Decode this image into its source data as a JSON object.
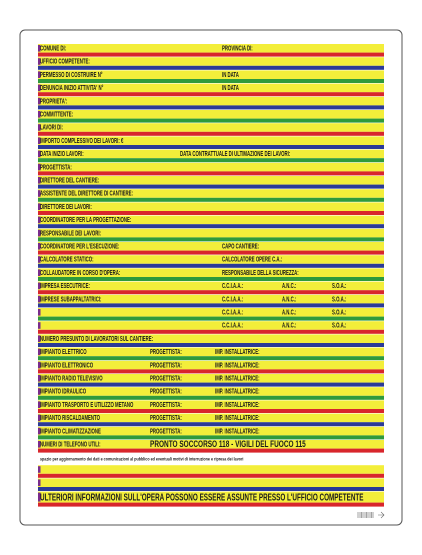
{
  "sign": {
    "rows": [
      [
        "COMUNE DI:",
        "PROVINCIA DI:"
      ],
      [
        "UFFICIO COMPETENTE:"
      ],
      [
        "PERMESSO DI COSTRUIRE N°",
        "IN DATA"
      ],
      [
        "DENUNCIA INIZIO ATTIVITA' N°",
        "IN DATA"
      ],
      [
        "PROPRIETA':"
      ],
      [
        "COMMITTENTE:"
      ],
      [
        "LAVORI DI:"
      ],
      [
        "IMPORTO COMPLESSIVO DEI LAVORI: €"
      ],
      [
        "DATA INIZIO LAVORI:",
        "DATA CONTRATTUALE DI ULTIMAZIONE DEI LAVORI:"
      ],
      [
        "PROGETTISTA:"
      ],
      [
        "DIRETTORE DEL CANTIERE:"
      ],
      [
        "ASSISTENTE DEL DIRETTORE DI CANTIERE:"
      ],
      [
        "DIRETTORE DEI LAVORI:"
      ],
      [
        "COORDINATORE PER LA PROGETTAZIONE:"
      ],
      [
        "RESPONSABILE DEI LAVORI:"
      ],
      [
        "COORDINATORE PER L'ESECUZIONE:",
        "CAPO CANTIERE:"
      ],
      [
        "CALCOLATORE STATICO:",
        "CALCOLATORE OPERE C.A.:"
      ],
      [
        "COLLAUDATORE IN CORSO D'OPERA:",
        "RESPONSABILE DELLA SICUREZZA:"
      ],
      [
        "IMPRESA ESECUTRICE:",
        "C.C.I.A.A.:",
        "A.N.C.:",
        "S.O.A.:"
      ],
      [
        "IMPRESE SUBAPPALTATRICI:",
        "C.C.I.A.A.:",
        "A.N.C.:",
        "S.O.A.:"
      ],
      [
        "C.C.I.A.A.:",
        "A.N.C.:",
        "S.O.A.:"
      ],
      [
        "C.C.I.A.A.:",
        "A.N.C.:",
        "S.O.A.:"
      ],
      [
        "NUMERO PRESUNTO DI LAVORATORI SUL CANTIERE:"
      ],
      [
        "IMPIANTO ELETTRICO",
        "PROGETTISTA:",
        "IMP. INSTALLATRICE:"
      ],
      [
        "IMPIANTO ELETTRONICO",
        "PROGETTISTA:",
        "IMP. INSTALLATRICE:"
      ],
      [
        "IMPIANTO RADIO TELEVISIVO",
        "PROGETTISTA:",
        "IMP. INSTALLATRICE:"
      ],
      [
        "IMPIANTO IDRAULICO",
        "PROGETTISTA:",
        "IMP. INSTALLATRICE:"
      ],
      [
        "IMPIANTO TRASPORTO E UTILIZZO METANO",
        "PROGETTISTA:",
        "IMP. INSTALLATRICE:"
      ],
      [
        "IMPIANTO RISCALDAMENTO",
        "PROGETTISTA:",
        "IMP. INSTALLATRICE:"
      ],
      [
        "IMPIANTO CLIMATIZZAZIONE",
        "PROGETTISTA:",
        "IMP. INSTALLATRICE:"
      ],
      [
        "NUMERI DI TELEFONO UTILI:",
        "PRONTO SOCCORSO 118 - VIGILI DEL FUOCO 115"
      ]
    ],
    "note": "spazio per aggiornamento dei dati e comunicazioni al pubblico ed eventuali motivi di interruzione e ripresa dei lavori",
    "footer": "ULTERIORI INFORMAZIONI SULL'OPERA POSSONO ESSERE ASSUNTE PRESSO L'UFFICIO COMPETENTE"
  }
}
